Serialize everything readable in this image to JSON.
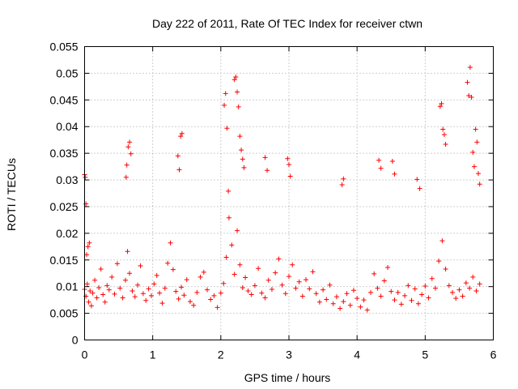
{
  "chart_data": {
    "type": "scatter",
    "title": "Day 222 of 2011, Rate Of TEC Index for receiver ctwn",
    "xlabel": "GPS time / hours",
    "ylabel": "ROTI / TECUs",
    "xlim": [
      0,
      6
    ],
    "ylim": [
      0,
      0.055
    ],
    "xticks": [
      0,
      1,
      2,
      3,
      4,
      5,
      6
    ],
    "yticks": [
      0,
      0.005,
      0.01,
      0.015,
      0.02,
      0.025,
      0.03,
      0.035,
      0.04,
      0.045,
      0.05,
      0.055
    ],
    "xtick_labels": [
      "0",
      "1",
      "2",
      "3",
      "4",
      "5",
      "6"
    ],
    "ytick_labels": [
      "0",
      "0.005",
      "0.01",
      "0.015",
      "0.02",
      "0.025",
      "0.03",
      "0.035",
      "0.04",
      "0.045",
      "0.05",
      "0.055"
    ],
    "grid": true,
    "marker": "+",
    "color": "#ff0000",
    "series": [
      {
        "x": [
          0.0,
          0.02,
          0.04,
          0.06,
          0.08,
          0.1,
          0.12,
          0.15,
          0.18,
          0.21,
          0.24,
          0.27,
          0.3,
          0.33,
          0.36,
          0.4,
          0.44,
          0.48,
          0.52,
          0.56,
          0.6,
          0.63,
          0.66,
          0.7,
          0.74,
          0.78,
          0.82,
          0.86,
          0.9,
          0.94,
          0.98,
          1.02,
          1.06,
          1.1,
          1.14,
          1.18,
          1.22,
          1.26,
          1.3,
          1.34,
          1.38,
          1.42,
          1.46,
          1.5,
          1.55,
          1.6,
          1.65,
          1.7,
          1.75,
          1.8,
          1.85,
          1.9,
          1.95,
          2.0,
          2.04,
          2.08,
          2.12,
          2.16,
          2.2,
          2.24,
          2.28,
          2.32,
          2.36,
          2.4,
          2.45,
          2.5,
          2.55,
          2.6,
          2.65,
          2.7,
          2.75,
          2.8,
          2.85,
          2.9,
          2.95,
          3.0,
          3.05,
          3.1,
          3.15,
          3.2,
          3.25,
          3.3,
          3.35,
          3.4,
          3.45,
          3.5,
          3.55,
          3.6,
          3.65,
          3.7,
          3.75,
          3.8,
          3.85,
          3.9,
          3.95,
          4.0,
          4.05,
          4.1,
          4.15,
          4.2,
          4.25,
          4.3,
          4.35,
          4.4,
          4.45,
          4.5,
          4.55,
          4.6,
          4.65,
          4.7,
          4.75,
          4.8,
          4.85,
          4.9,
          4.95,
          5.0,
          5.05,
          5.1,
          5.15,
          5.2,
          5.25,
          5.3,
          5.35,
          5.4,
          5.45,
          5.5,
          5.55,
          5.6,
          5.65,
          5.7,
          5.75,
          5.8,
          0.0,
          0.01,
          0.02,
          0.03,
          0.05,
          0.07,
          0.61,
          0.62,
          0.64,
          0.66,
          0.68,
          1.37,
          1.39,
          1.41,
          1.43,
          2.05,
          2.07,
          2.09,
          2.11,
          2.2,
          2.22,
          2.24,
          2.26,
          2.28,
          2.3,
          2.32,
          2.34,
          2.65,
          2.68,
          2.98,
          3.0,
          3.02,
          3.78,
          3.8,
          4.32,
          4.35,
          4.52,
          4.55,
          4.88,
          4.92,
          5.22,
          5.24,
          5.26,
          5.28,
          5.3,
          5.62,
          5.64,
          5.66,
          5.68,
          5.7,
          5.72,
          5.74,
          5.76,
          5.78,
          5.8
        ],
        "y": [
          0.0095,
          0.0082,
          0.0105,
          0.0071,
          0.0092,
          0.0064,
          0.0088,
          0.0112,
          0.0079,
          0.0098,
          0.0133,
          0.0085,
          0.0071,
          0.0102,
          0.0094,
          0.0118,
          0.0086,
          0.0143,
          0.0097,
          0.0079,
          0.0112,
          0.0166,
          0.0125,
          0.0092,
          0.0081,
          0.0103,
          0.0139,
          0.0087,
          0.0074,
          0.0096,
          0.0083,
          0.0105,
          0.0121,
          0.0088,
          0.0069,
          0.0097,
          0.0144,
          0.0182,
          0.0132,
          0.0091,
          0.0077,
          0.0099,
          0.0084,
          0.0113,
          0.0072,
          0.0065,
          0.0089,
          0.0118,
          0.0127,
          0.0094,
          0.0076,
          0.0083,
          0.0061,
          0.0088,
          0.0106,
          0.0155,
          0.0229,
          0.0178,
          0.0123,
          0.0205,
          0.0141,
          0.0098,
          0.0117,
          0.0092,
          0.0085,
          0.0102,
          0.0134,
          0.0088,
          0.0079,
          0.0112,
          0.0095,
          0.0126,
          0.0152,
          0.0103,
          0.0087,
          0.0119,
          0.0141,
          0.0097,
          0.0109,
          0.0082,
          0.0113,
          0.0096,
          0.0128,
          0.0087,
          0.0071,
          0.0094,
          0.0076,
          0.0103,
          0.0068,
          0.0081,
          0.0059,
          0.0072,
          0.0087,
          0.0065,
          0.0093,
          0.0078,
          0.0062,
          0.0075,
          0.0056,
          0.0089,
          0.0124,
          0.0097,
          0.0082,
          0.0111,
          0.0136,
          0.0091,
          0.0075,
          0.0089,
          0.0067,
          0.0083,
          0.0102,
          0.0074,
          0.0096,
          0.0068,
          0.0085,
          0.0101,
          0.0079,
          0.0115,
          0.0097,
          0.0148,
          0.0186,
          0.0133,
          0.0102,
          0.0089,
          0.0078,
          0.0094,
          0.0082,
          0.0107,
          0.0097,
          0.0118,
          0.0092,
          0.0105,
          0.031,
          0.0305,
          0.0255,
          0.016,
          0.0175,
          0.0182,
          0.0305,
          0.0328,
          0.0362,
          0.0371,
          0.0349,
          0.0345,
          0.0319,
          0.0382,
          0.0387,
          0.044,
          0.0462,
          0.0397,
          0.0279,
          0.0488,
          0.0493,
          0.0465,
          0.0437,
          0.0382,
          0.0356,
          0.0339,
          0.0323,
          0.0342,
          0.0318,
          0.034,
          0.0329,
          0.0307,
          0.0291,
          0.0302,
          0.0337,
          0.0322,
          0.0335,
          0.0311,
          0.0301,
          0.0284,
          0.0438,
          0.0443,
          0.0395,
          0.0385,
          0.0367,
          0.0483,
          0.0458,
          0.0511,
          0.0455,
          0.0352,
          0.0325,
          0.0395,
          0.0371,
          0.0312,
          0.0292
        ]
      }
    ]
  }
}
